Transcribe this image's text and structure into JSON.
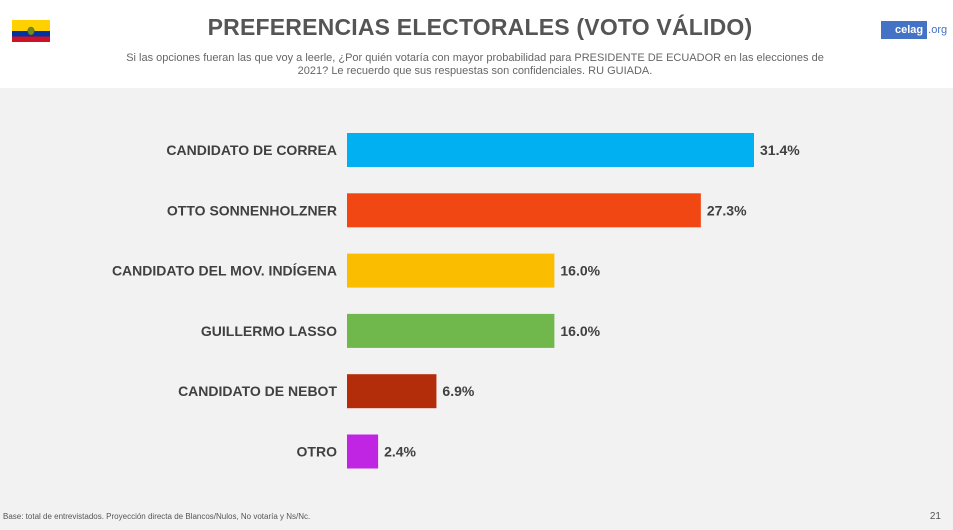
{
  "header": {
    "title": "PREFERENCIAS ELECTORALES (VOTO VÁLIDO)",
    "subtitle": "Si las opciones fueran las que voy a leerle, ¿Por quién votaría con mayor probabilidad para PRESIDENTE DE ECUADOR en las elecciones de 2021? Le recuerdo que sus respuestas son confidenciales.  RU GUIADA.",
    "logo_text": "celag",
    "logo_tld": ".org"
  },
  "colors": {
    "flag_yellow": "#ffd100",
    "flag_blue": "#0033a0",
    "flag_red": "#ce1126"
  },
  "chart_data": {
    "type": "bar",
    "orientation": "horizontal",
    "title": "PREFERENCIAS ELECTORALES (VOTO VÁLIDO)",
    "xlabel": "",
    "ylabel": "",
    "xlim": [
      0,
      35
    ],
    "categories": [
      "CANDIDATO DE CORREA",
      "OTTO SONNENHOLZNER",
      "CANDIDATO DEL MOV. INDÍGENA",
      "GUILLERMO LASSO",
      "CANDIDATO DE NEBOT",
      "OTRO"
    ],
    "values": [
      31.4,
      27.3,
      16.0,
      16.0,
      6.9,
      2.4
    ],
    "value_labels": [
      "31.4%",
      "27.3%",
      "16.0%",
      "16.0%",
      "6.9%",
      "2.4%"
    ],
    "colors": [
      "#00b0f0",
      "#f04713",
      "#fbbd00",
      "#70b84b",
      "#b42d0a",
      "#c125e4"
    ]
  },
  "footer": {
    "note": "Base: total de entrevistados. Proyección directa de Blancos/Nulos, No votaría y Ns/Nc.",
    "page_number": "21"
  }
}
